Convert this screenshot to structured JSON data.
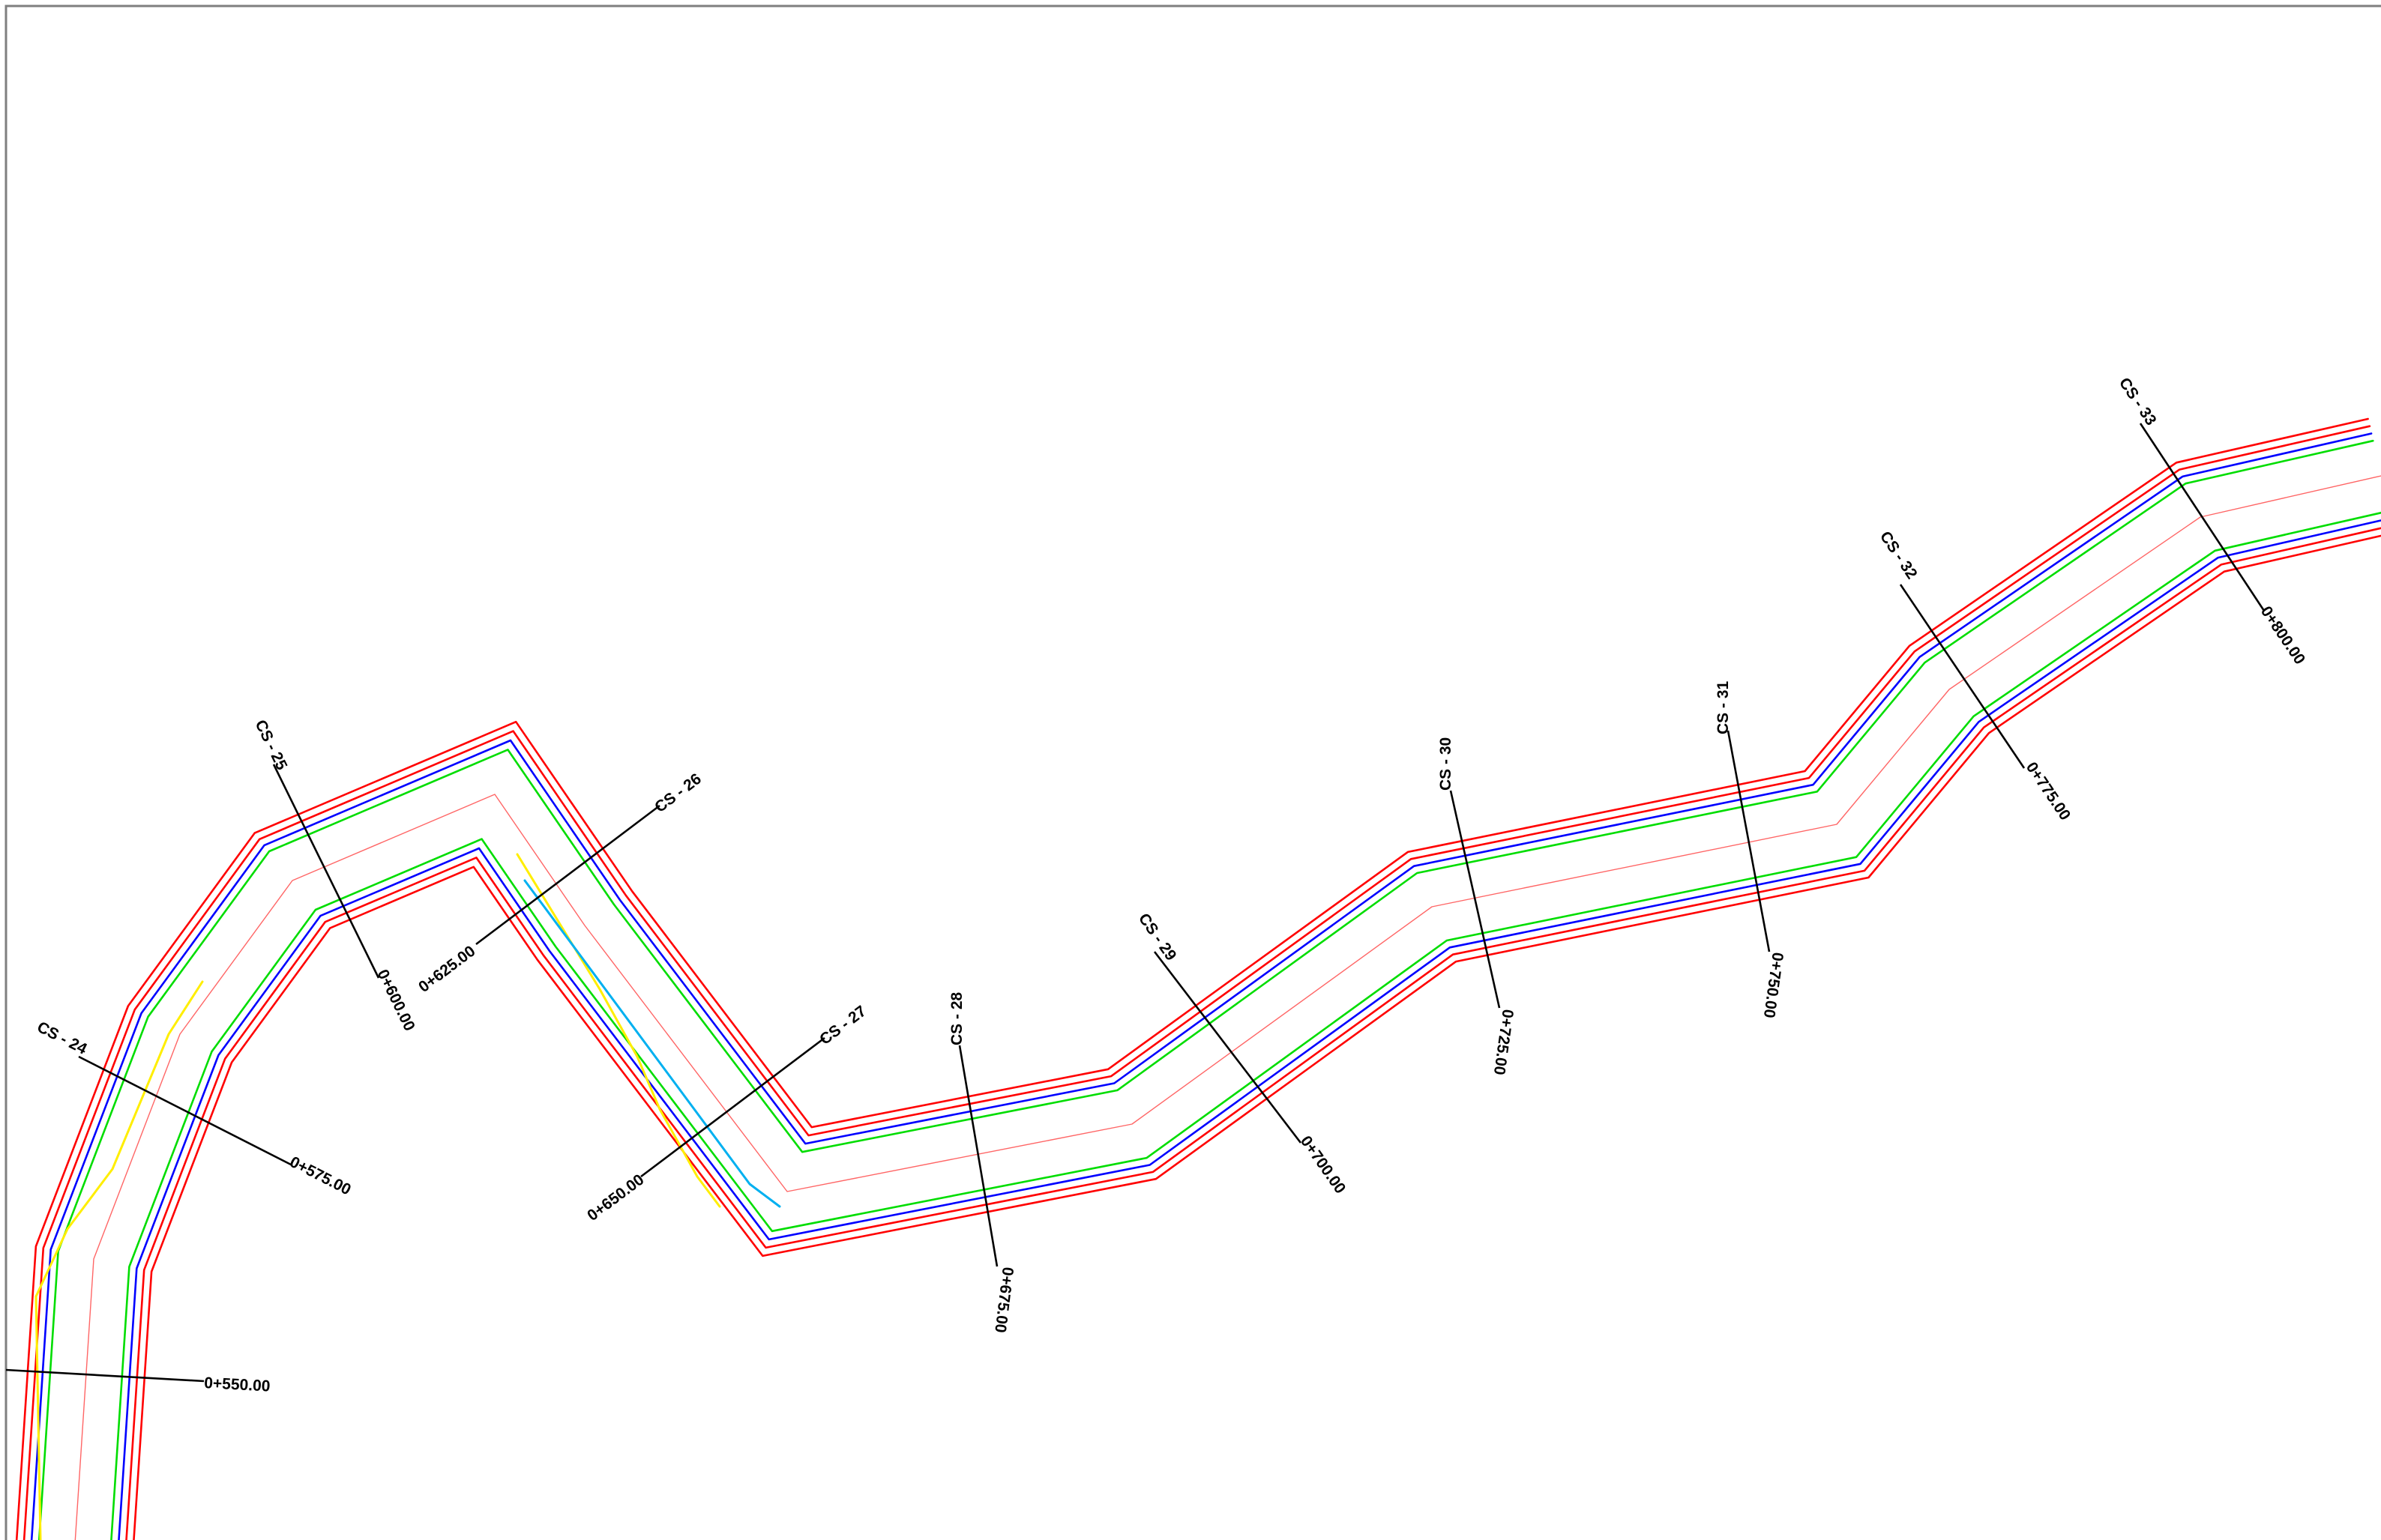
{
  "colors": {
    "background": "#ffffff",
    "frame": "#7f7f7f",
    "bank_outer": "#ff0000",
    "water_edge": "#0000ff",
    "channel_edge": "#00dd00",
    "centerline": "#ff6666",
    "wet_area": "#00b0f0",
    "existing_bank": "#ffee00",
    "section_line": "#000000"
  },
  "cross_sections": [
    {
      "id": "cs-24",
      "name": "CS - 24",
      "chainage": "0+575.00"
    },
    {
      "id": "cs-25",
      "name": "CS - 25",
      "chainage": "0+600.00"
    },
    {
      "id": "cs-26",
      "name": "CS - 26",
      "chainage": "0+625.00"
    },
    {
      "id": "cs-27",
      "name": "CS - 27",
      "chainage": "0+650.00"
    },
    {
      "id": "cs-28",
      "name": "CS - 28",
      "chainage": "0+675.00"
    },
    {
      "id": "cs-29",
      "name": "CS - 29",
      "chainage": "0+700.00"
    },
    {
      "id": "cs-30",
      "name": "CS - 30",
      "chainage": "0+725.00"
    },
    {
      "id": "cs-31",
      "name": "CS - 31",
      "chainage": "0+750.00"
    },
    {
      "id": "cs-32",
      "name": "CS - 32",
      "chainage": "0+775.00"
    },
    {
      "id": "cs-33",
      "name": "CS - 33",
      "chainage": "0+800.00"
    }
  ],
  "edge_chainage": "0+550.00"
}
